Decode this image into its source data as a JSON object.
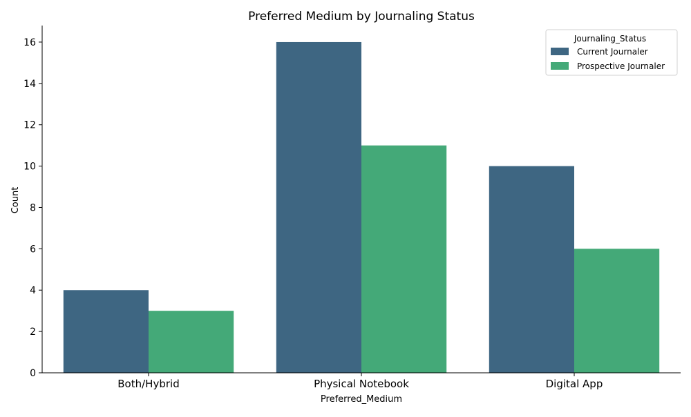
{
  "chart_data": {
    "type": "bar",
    "title": "Preferred Medium by Journaling Status",
    "xlabel": "Preferred_Medium",
    "ylabel": "Count",
    "categories": [
      "Both/Hybrid",
      "Physical Notebook",
      "Digital App"
    ],
    "series": [
      {
        "name": "Current Journaler",
        "color": "#3e6682",
        "values": [
          4,
          16,
          10
        ]
      },
      {
        "name": "Prospective Journaler",
        "color": "#44a978",
        "values": [
          3,
          11,
          6
        ]
      }
    ],
    "ylim": [
      0,
      16.8
    ],
    "yticks": [
      0,
      2,
      4,
      6,
      8,
      10,
      12,
      14,
      16
    ],
    "grid": false,
    "legend": {
      "title": "Journaling_Status",
      "placement": "top-right"
    }
  }
}
